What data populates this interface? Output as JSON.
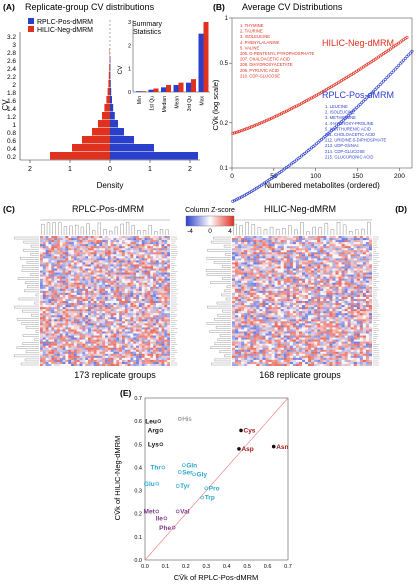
{
  "colors": {
    "red": "#e0301e",
    "blue": "#2a3fcc",
    "redLight": "#f08070",
    "blueLight": "#7080e0",
    "heatRed": "#e23a2a",
    "heatBlue": "#3b4fd8",
    "cyan": "#2aa6c8",
    "purple": "#7b3a8c",
    "darkred": "#a01818",
    "grey": "#777777"
  },
  "panelA": {
    "label": "(A)",
    "title": "Replicate-group CV distributions",
    "legend": [
      "RPLC-Pos-dMRM",
      "HILIC-Neg-dMRM"
    ],
    "ylabel": "CV",
    "xlabel": "Density",
    "inset_title": [
      "Summary",
      "Statistics"
    ],
    "inset_ylabel": "CV"
  },
  "panelB": {
    "label": "(B)",
    "title": "Average CV Distributions",
    "ylabel": "CV̄k (log scale)",
    "xlabel": "Numbered metabolites (ordered)",
    "hilic_label": "HILIC-Neg-dMRM",
    "rplc_label": "RPLC-Pos-dMRM",
    "hilic_list": [
      "1. THYMINE",
      "2. TAURINE",
      "3. ISOLEUCINE",
      "4. PHENYLALANINE",
      "5. VALINE",
      "206. D-PENTENYL PYROPHOSPHATE",
      "207. OXALOACETIC ACID",
      "208. DIHYDROXYACETATE",
      "209. PYRUVIC ACID",
      "210. CDP-GLUCOSE"
    ],
    "rplc_list": [
      "1. LEUCINE",
      "2. ISOLEUCINE",
      "3. METHIONINE",
      "4. 4-HYDROXY-PROLINE",
      "5. XANTHURENIC ACID",
      "211. CHOLOACETIC ACID",
      "212. URIDINE-5-DIPHOSPHATE",
      "213. UDP-GlcNAc",
      "214. CDP-GLUCOSE",
      "215. GLUCURONIC ACID"
    ]
  },
  "panelC": {
    "label": "(C)",
    "title": "RPLC-Pos-dMRM",
    "caption": "173 replicate groups"
  },
  "panelD": {
    "label": "(D)",
    "title": "HILIC-Neg-dMRM",
    "caption": "168 replicate groups"
  },
  "colorkey": {
    "title": "Column Z-score"
  },
  "panelE": {
    "label": "(E)",
    "ylabel": "CV̄k of HILIC-Neg-dMRM",
    "xlabel": "CV̄k of RPLC-Pos-dMRM"
  },
  "chart_data": [
    {
      "type": "bar",
      "title": "Replicate-group CV distributions",
      "xlabel": "Density",
      "ylabel": "CV",
      "categories": [
        0.2,
        0.4,
        0.6,
        0.8,
        1.0,
        1.2,
        1.4,
        1.6,
        1.8,
        2.0,
        2.2,
        2.4,
        2.6,
        2.8,
        3.0,
        3.2
      ],
      "series": [
        {
          "name": "RPLC-Pos-dMRM",
          "values": [
            2.2,
            1.1,
            0.6,
            0.35,
            0.2,
            0.12,
            0.08,
            0.05,
            0.03,
            0.02,
            0.01,
            0.01,
            0.01,
            0,
            0,
            0
          ]
        },
        {
          "name": "HILIC-Neg-dMRM",
          "values": [
            1.5,
            0.95,
            0.7,
            0.45,
            0.3,
            0.2,
            0.14,
            0.09,
            0.06,
            0.04,
            0.03,
            0.02,
            0.01,
            0.01,
            0,
            0
          ]
        }
      ]
    },
    {
      "type": "bar",
      "title": "Summary Statistics",
      "ylabel": "CV",
      "categories": [
        "Min",
        "1st Qu",
        "Median",
        "Mean",
        "3rd Qu",
        "Max"
      ],
      "series": [
        {
          "name": "RPLC-Pos-dMRM",
          "values": [
            0.01,
            0.1,
            0.2,
            0.3,
            0.4,
            2.5
          ]
        },
        {
          "name": "HILIC-Neg-dMRM",
          "values": [
            0.02,
            0.15,
            0.3,
            0.4,
            0.55,
            3.0
          ]
        }
      ],
      "ylim": [
        0,
        3
      ]
    },
    {
      "type": "scatter",
      "title": "Average CV Distributions",
      "xlabel": "Numbered metabolites (ordered)",
      "ylabel": "CV̄k (log scale)",
      "xlim": [
        0,
        215
      ],
      "ylim": [
        0.1,
        1
      ],
      "series": [
        {
          "name": "HILIC-Neg-dMRM",
          "start": 0.17,
          "end": 0.75,
          "count": 210
        },
        {
          "name": "RPLC-Pos-dMRM",
          "start": 0.06,
          "end": 0.6,
          "count": 215
        }
      ]
    },
    {
      "type": "scatter",
      "xlabel": "CV̄k of RPLC-Pos-dMRM",
      "ylabel": "CV̄k of HILIC-Neg-dMRM",
      "xlim": [
        0,
        0.7
      ],
      "ylim": [
        0,
        0.7
      ],
      "points": [
        {
          "label": "His",
          "x": 0.17,
          "y": 0.61,
          "group": "grey"
        },
        {
          "label": "Leu",
          "x": 0.07,
          "y": 0.6,
          "group": "black"
        },
        {
          "label": "Arg",
          "x": 0.08,
          "y": 0.56,
          "group": "black"
        },
        {
          "label": "Lys",
          "x": 0.08,
          "y": 0.5,
          "group": "black"
        },
        {
          "label": "Cys",
          "x": 0.47,
          "y": 0.56,
          "group": "darkred"
        },
        {
          "label": "Asp",
          "x": 0.46,
          "y": 0.48,
          "group": "darkred"
        },
        {
          "label": "Asn",
          "x": 0.63,
          "y": 0.49,
          "group": "darkred"
        },
        {
          "label": "Thr",
          "x": 0.09,
          "y": 0.4,
          "group": "cyan"
        },
        {
          "label": "Gln",
          "x": 0.19,
          "y": 0.41,
          "group": "cyan"
        },
        {
          "label": "Ser",
          "x": 0.17,
          "y": 0.38,
          "group": "cyan"
        },
        {
          "label": "Gly",
          "x": 0.24,
          "y": 0.37,
          "group": "cyan"
        },
        {
          "label": "Glu",
          "x": 0.06,
          "y": 0.33,
          "group": "cyan"
        },
        {
          "label": "Tyr",
          "x": 0.16,
          "y": 0.32,
          "group": "cyan"
        },
        {
          "label": "Pro",
          "x": 0.3,
          "y": 0.31,
          "group": "cyan"
        },
        {
          "label": "Trp",
          "x": 0.28,
          "y": 0.27,
          "group": "cyan"
        },
        {
          "label": "Met",
          "x": 0.06,
          "y": 0.21,
          "group": "purple"
        },
        {
          "label": "Val",
          "x": 0.16,
          "y": 0.21,
          "group": "purple"
        },
        {
          "label": "Ile",
          "x": 0.1,
          "y": 0.18,
          "group": "purple"
        },
        {
          "label": "Phe",
          "x": 0.14,
          "y": 0.14,
          "group": "purple"
        }
      ]
    }
  ]
}
